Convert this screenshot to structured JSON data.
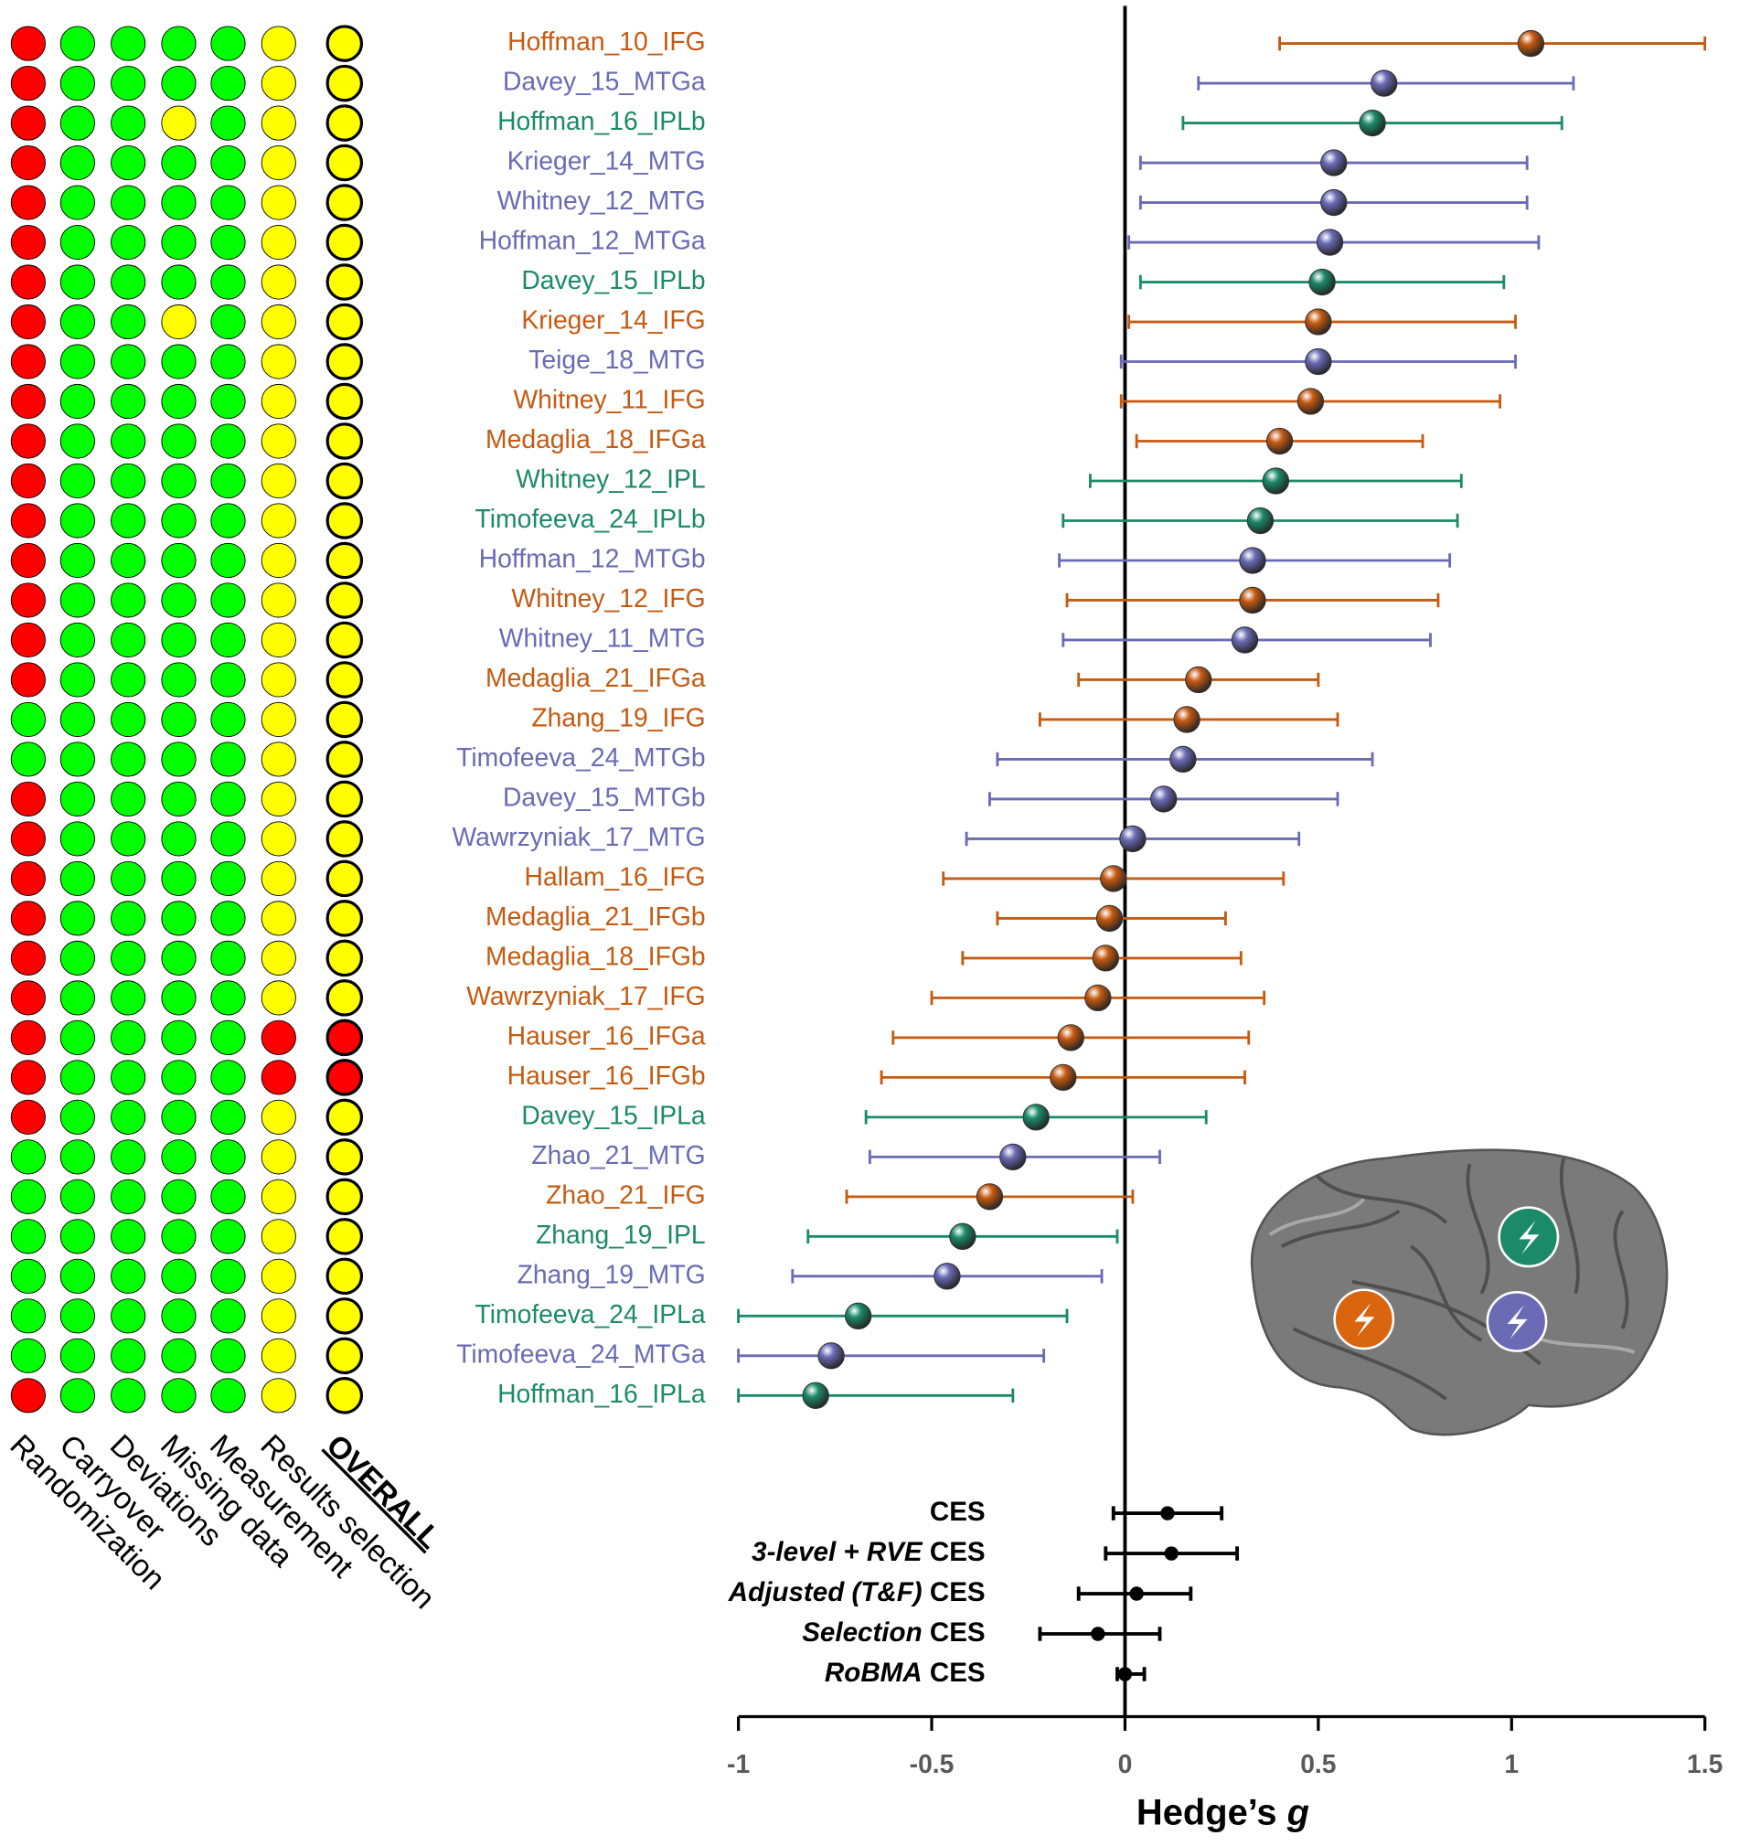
{
  "chart_data": {
    "type": "forest",
    "xlabel": "Hedge’s",
    "xlabel_italic": "g",
    "xlim": [
      -1,
      1.5
    ],
    "xticks": [
      -1,
      -0.5,
      0,
      0.5,
      1,
      1.5
    ],
    "rob_domains": [
      "Randomization",
      "Carryover",
      "Deviations",
      "Missing data",
      "Measurement",
      "Results selection",
      "OVERALL"
    ],
    "studies": [
      {
        "name": "Hoffman_10_IFG",
        "color": "#c55a11",
        "estimate": 1.05,
        "lower": 0.4,
        "upper": 1.5,
        "rob": [
          "#ff0000",
          "#00ff00",
          "#00ff00",
          "#00ff00",
          "#00ff00",
          "#ffff00",
          "#ffff00"
        ]
      },
      {
        "name": "Davey_15_MTGa",
        "color": "#6a6ab5",
        "estimate": 0.67,
        "lower": 0.19,
        "upper": 1.16,
        "rob": [
          "#ff0000",
          "#00ff00",
          "#00ff00",
          "#00ff00",
          "#00ff00",
          "#ffff00",
          "#ffff00"
        ]
      },
      {
        "name": "Hoffman_16_IPLb",
        "color": "#1b8a67",
        "estimate": 0.64,
        "lower": 0.15,
        "upper": 1.13,
        "rob": [
          "#ff0000",
          "#00ff00",
          "#00ff00",
          "#ffff00",
          "#00ff00",
          "#ffff00",
          "#ffff00"
        ]
      },
      {
        "name": "Krieger_14_MTG",
        "color": "#6a6ab5",
        "estimate": 0.54,
        "lower": 0.04,
        "upper": 1.04,
        "rob": [
          "#ff0000",
          "#00ff00",
          "#00ff00",
          "#00ff00",
          "#00ff00",
          "#ffff00",
          "#ffff00"
        ]
      },
      {
        "name": "Whitney_12_MTG",
        "color": "#6a6ab5",
        "estimate": 0.54,
        "lower": 0.04,
        "upper": 1.04,
        "rob": [
          "#ff0000",
          "#00ff00",
          "#00ff00",
          "#00ff00",
          "#00ff00",
          "#ffff00",
          "#ffff00"
        ]
      },
      {
        "name": "Hoffman_12_MTGa",
        "color": "#6a6ab5",
        "estimate": 0.53,
        "lower": 0.01,
        "upper": 1.07,
        "rob": [
          "#ff0000",
          "#00ff00",
          "#00ff00",
          "#00ff00",
          "#00ff00",
          "#ffff00",
          "#ffff00"
        ]
      },
      {
        "name": "Davey_15_IPLb",
        "color": "#1b8a67",
        "estimate": 0.51,
        "lower": 0.04,
        "upper": 0.98,
        "rob": [
          "#ff0000",
          "#00ff00",
          "#00ff00",
          "#00ff00",
          "#00ff00",
          "#ffff00",
          "#ffff00"
        ]
      },
      {
        "name": "Krieger_14_IFG",
        "color": "#c55a11",
        "estimate": 0.5,
        "lower": 0.01,
        "upper": 1.01,
        "rob": [
          "#ff0000",
          "#00ff00",
          "#00ff00",
          "#ffff00",
          "#00ff00",
          "#ffff00",
          "#ffff00"
        ]
      },
      {
        "name": "Teige_18_MTG",
        "color": "#6a6ab5",
        "estimate": 0.5,
        "lower": -0.01,
        "upper": 1.01,
        "rob": [
          "#ff0000",
          "#00ff00",
          "#00ff00",
          "#00ff00",
          "#00ff00",
          "#ffff00",
          "#ffff00"
        ]
      },
      {
        "name": "Whitney_11_IFG",
        "color": "#c55a11",
        "estimate": 0.48,
        "lower": -0.01,
        "upper": 0.97,
        "rob": [
          "#ff0000",
          "#00ff00",
          "#00ff00",
          "#00ff00",
          "#00ff00",
          "#ffff00",
          "#ffff00"
        ]
      },
      {
        "name": "Medaglia_18_IFGa",
        "color": "#c55a11",
        "estimate": 0.4,
        "lower": 0.03,
        "upper": 0.77,
        "rob": [
          "#ff0000",
          "#00ff00",
          "#00ff00",
          "#00ff00",
          "#00ff00",
          "#ffff00",
          "#ffff00"
        ]
      },
      {
        "name": "Whitney_12_IPL",
        "color": "#1b8a67",
        "estimate": 0.39,
        "lower": -0.09,
        "upper": 0.87,
        "rob": [
          "#ff0000",
          "#00ff00",
          "#00ff00",
          "#00ff00",
          "#00ff00",
          "#ffff00",
          "#ffff00"
        ]
      },
      {
        "name": "Timofeeva_24_IPLb",
        "color": "#1b8a67",
        "estimate": 0.35,
        "lower": -0.16,
        "upper": 0.86,
        "rob": [
          "#ff0000",
          "#00ff00",
          "#00ff00",
          "#00ff00",
          "#00ff00",
          "#ffff00",
          "#ffff00"
        ]
      },
      {
        "name": "Hoffman_12_MTGb",
        "color": "#6a6ab5",
        "estimate": 0.33,
        "lower": -0.17,
        "upper": 0.84,
        "rob": [
          "#ff0000",
          "#00ff00",
          "#00ff00",
          "#00ff00",
          "#00ff00",
          "#ffff00",
          "#ffff00"
        ]
      },
      {
        "name": "Whitney_12_IFG",
        "color": "#c55a11",
        "estimate": 0.33,
        "lower": -0.15,
        "upper": 0.81,
        "rob": [
          "#ff0000",
          "#00ff00",
          "#00ff00",
          "#00ff00",
          "#00ff00",
          "#ffff00",
          "#ffff00"
        ]
      },
      {
        "name": "Whitney_11_MTG",
        "color": "#6a6ab5",
        "estimate": 0.31,
        "lower": -0.16,
        "upper": 0.79,
        "rob": [
          "#ff0000",
          "#00ff00",
          "#00ff00",
          "#00ff00",
          "#00ff00",
          "#ffff00",
          "#ffff00"
        ]
      },
      {
        "name": "Medaglia_21_IFGa",
        "color": "#c55a11",
        "estimate": 0.19,
        "lower": -0.12,
        "upper": 0.5,
        "rob": [
          "#ff0000",
          "#00ff00",
          "#00ff00",
          "#00ff00",
          "#00ff00",
          "#ffff00",
          "#ffff00"
        ]
      },
      {
        "name": "Zhang_19_IFG",
        "color": "#c55a11",
        "estimate": 0.16,
        "lower": -0.22,
        "upper": 0.55,
        "rob": [
          "#00ff00",
          "#00ff00",
          "#00ff00",
          "#00ff00",
          "#00ff00",
          "#ffff00",
          "#ffff00"
        ]
      },
      {
        "name": "Timofeeva_24_MTGb",
        "color": "#6a6ab5",
        "estimate": 0.15,
        "lower": -0.33,
        "upper": 0.64,
        "rob": [
          "#00ff00",
          "#00ff00",
          "#00ff00",
          "#00ff00",
          "#00ff00",
          "#ffff00",
          "#ffff00"
        ]
      },
      {
        "name": "Davey_15_MTGb",
        "color": "#6a6ab5",
        "estimate": 0.1,
        "lower": -0.35,
        "upper": 0.55,
        "rob": [
          "#ff0000",
          "#00ff00",
          "#00ff00",
          "#00ff00",
          "#00ff00",
          "#ffff00",
          "#ffff00"
        ]
      },
      {
        "name": "Wawrzyniak_17_MTG",
        "color": "#6a6ab5",
        "estimate": 0.02,
        "lower": -0.41,
        "upper": 0.45,
        "rob": [
          "#ff0000",
          "#00ff00",
          "#00ff00",
          "#00ff00",
          "#00ff00",
          "#ffff00",
          "#ffff00"
        ]
      },
      {
        "name": "Hallam_16_IFG",
        "color": "#c55a11",
        "estimate": -0.03,
        "lower": -0.47,
        "upper": 0.41,
        "rob": [
          "#ff0000",
          "#00ff00",
          "#00ff00",
          "#00ff00",
          "#00ff00",
          "#ffff00",
          "#ffff00"
        ]
      },
      {
        "name": "Medaglia_21_IFGb",
        "color": "#c55a11",
        "estimate": -0.04,
        "lower": -0.33,
        "upper": 0.26,
        "rob": [
          "#ff0000",
          "#00ff00",
          "#00ff00",
          "#00ff00",
          "#00ff00",
          "#ffff00",
          "#ffff00"
        ]
      },
      {
        "name": "Medaglia_18_IFGb",
        "color": "#c55a11",
        "estimate": -0.05,
        "lower": -0.42,
        "upper": 0.3,
        "rob": [
          "#ff0000",
          "#00ff00",
          "#00ff00",
          "#00ff00",
          "#00ff00",
          "#ffff00",
          "#ffff00"
        ]
      },
      {
        "name": "Wawrzyniak_17_IFG",
        "color": "#c55a11",
        "estimate": -0.07,
        "lower": -0.5,
        "upper": 0.36,
        "rob": [
          "#ff0000",
          "#00ff00",
          "#00ff00",
          "#00ff00",
          "#00ff00",
          "#ffff00",
          "#ffff00"
        ]
      },
      {
        "name": "Hauser_16_IFGa",
        "color": "#c55a11",
        "estimate": -0.14,
        "lower": -0.6,
        "upper": 0.32,
        "rob": [
          "#ff0000",
          "#00ff00",
          "#00ff00",
          "#00ff00",
          "#00ff00",
          "#ff0000",
          "#ff0000"
        ]
      },
      {
        "name": "Hauser_16_IFGb",
        "color": "#c55a11",
        "estimate": -0.16,
        "lower": -0.63,
        "upper": 0.31,
        "rob": [
          "#ff0000",
          "#00ff00",
          "#00ff00",
          "#00ff00",
          "#00ff00",
          "#ff0000",
          "#ff0000"
        ]
      },
      {
        "name": "Davey_15_IPLa",
        "color": "#1b8a67",
        "estimate": -0.23,
        "lower": -0.67,
        "upper": 0.21,
        "rob": [
          "#ff0000",
          "#00ff00",
          "#00ff00",
          "#00ff00",
          "#00ff00",
          "#ffff00",
          "#ffff00"
        ]
      },
      {
        "name": "Zhao_21_MTG",
        "color": "#6a6ab5",
        "estimate": -0.29,
        "lower": -0.66,
        "upper": 0.09,
        "rob": [
          "#00ff00",
          "#00ff00",
          "#00ff00",
          "#00ff00",
          "#00ff00",
          "#ffff00",
          "#ffff00"
        ]
      },
      {
        "name": "Zhao_21_IFG",
        "color": "#c55a11",
        "estimate": -0.35,
        "lower": -0.72,
        "upper": 0.02,
        "rob": [
          "#00ff00",
          "#00ff00",
          "#00ff00",
          "#00ff00",
          "#00ff00",
          "#ffff00",
          "#ffff00"
        ]
      },
      {
        "name": "Zhang_19_IPL",
        "color": "#1b8a67",
        "estimate": -0.42,
        "lower": -0.82,
        "upper": -0.02,
        "rob": [
          "#00ff00",
          "#00ff00",
          "#00ff00",
          "#00ff00",
          "#00ff00",
          "#ffff00",
          "#ffff00"
        ]
      },
      {
        "name": "Zhang_19_MTG",
        "color": "#6a6ab5",
        "estimate": -0.46,
        "lower": -0.86,
        "upper": -0.06,
        "rob": [
          "#00ff00",
          "#00ff00",
          "#00ff00",
          "#00ff00",
          "#00ff00",
          "#ffff00",
          "#ffff00"
        ]
      },
      {
        "name": "Timofeeva_24_IPLa",
        "color": "#1b8a67",
        "estimate": -0.69,
        "lower": -1.0,
        "upper": -0.15,
        "rob": [
          "#00ff00",
          "#00ff00",
          "#00ff00",
          "#00ff00",
          "#00ff00",
          "#ffff00",
          "#ffff00"
        ]
      },
      {
        "name": "Timofeeva_24_MTGa",
        "color": "#6a6ab5",
        "estimate": -0.76,
        "lower": -1.0,
        "upper": -0.21,
        "rob": [
          "#00ff00",
          "#00ff00",
          "#00ff00",
          "#00ff00",
          "#00ff00",
          "#ffff00",
          "#ffff00"
        ]
      },
      {
        "name": "Hoffman_16_IPLa",
        "color": "#1b8a67",
        "estimate": -0.8,
        "lower": -1.0,
        "upper": -0.29,
        "rob": [
          "#ff0000",
          "#00ff00",
          "#00ff00",
          "#00ff00",
          "#00ff00",
          "#ffff00",
          "#ffff00"
        ]
      }
    ],
    "summaries": [
      {
        "label": "CES",
        "estimate": 0.11,
        "lower": -0.03,
        "upper": 0.25
      },
      {
        "label_italic": "3-level + RVE",
        "label": "CES",
        "estimate": 0.12,
        "lower": -0.05,
        "upper": 0.29
      },
      {
        "label_italic": "Adjusted (T&F)",
        "label": "CES",
        "estimate": 0.03,
        "lower": -0.12,
        "upper": 0.17
      },
      {
        "label_italic": "Selection",
        "label": "CES",
        "estimate": -0.07,
        "lower": -0.22,
        "upper": 0.09
      },
      {
        "label_italic": "RoBMA",
        "label": "CES",
        "estimate": 0.0,
        "lower": -0.02,
        "upper": 0.05
      }
    ]
  }
}
